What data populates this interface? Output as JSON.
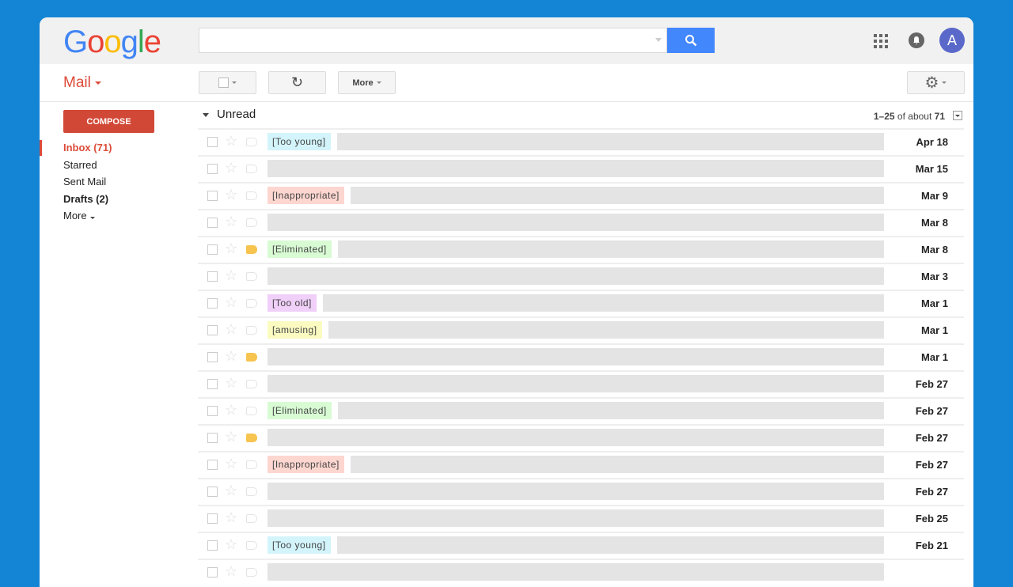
{
  "header": {
    "logo": "Google",
    "search_placeholder": "",
    "avatar_letter": "A"
  },
  "toolbar": {
    "app_label": "Mail",
    "more_label": "More"
  },
  "sidebar": {
    "compose_label": "COMPOSE",
    "items": [
      {
        "label": "Inbox (71)",
        "selected": true
      },
      {
        "label": "Starred"
      },
      {
        "label": "Sent Mail"
      },
      {
        "label": "Drafts (2)",
        "bold": true
      },
      {
        "label": "More"
      }
    ]
  },
  "main": {
    "section": "Unread",
    "count_range": "1–25",
    "count_of": "of about",
    "count_total": "71",
    "rows": [
      {
        "tag": "[Too young]",
        "tag_color": "#d3f4fb",
        "date": "Apr 18",
        "important": false
      },
      {
        "tag": "",
        "date": "Mar 15",
        "important": false
      },
      {
        "tag": "[Inappropriate]",
        "tag_color": "#fdd6d0",
        "date": "Mar 9",
        "important": false
      },
      {
        "tag": "",
        "date": "Mar 8",
        "important": false
      },
      {
        "tag": "[Eliminated]",
        "tag_color": "#d8fbd4",
        "date": "Mar 8",
        "important": true
      },
      {
        "tag": "",
        "date": "Mar 3",
        "important": false
      },
      {
        "tag": "[Too old]",
        "tag_color": "#f0cff9",
        "date": "Mar 1",
        "important": false
      },
      {
        "tag": "[amusing]",
        "tag_color": "#fbfbc1",
        "date": "Mar 1",
        "important": false
      },
      {
        "tag": "",
        "date": "Mar 1",
        "important": true
      },
      {
        "tag": "",
        "date": "Feb 27",
        "important": false
      },
      {
        "tag": "[Eliminated]",
        "tag_color": "#d8fbd4",
        "date": "Feb 27",
        "important": false
      },
      {
        "tag": "",
        "date": "Feb 27",
        "important": true
      },
      {
        "tag": "[Inappropriate]",
        "tag_color": "#fdd6d0",
        "date": "Feb 27",
        "important": false
      },
      {
        "tag": "",
        "date": "Feb 27",
        "important": false
      },
      {
        "tag": "",
        "date": "Feb 25",
        "important": false
      },
      {
        "tag": "[Too young]",
        "tag_color": "#d3f4fb",
        "date": "Feb 21",
        "important": false
      },
      {
        "tag": "",
        "date": "",
        "important": false
      }
    ]
  }
}
